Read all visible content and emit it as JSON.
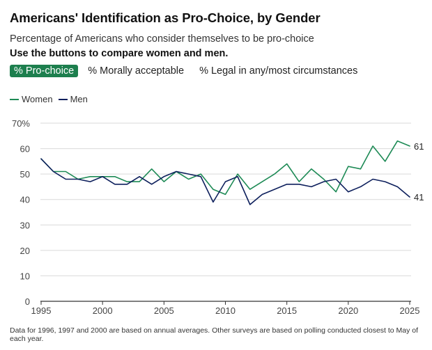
{
  "header": {
    "title": "Americans' Identification as Pro-Choice, by Gender",
    "subtitle": "Percentage of Americans who consider themselves to be pro-choice",
    "instruction": "Use the buttons to compare women and men."
  },
  "buttons": [
    {
      "label": "% Pro-choice",
      "active": true
    },
    {
      "label": "% Morally acceptable",
      "active": false
    },
    {
      "label": "% Legal in any/most circumstances",
      "active": false
    }
  ],
  "footnote": "Data for 1996, 1997 and 2000 are based on annual averages. Other surveys are based on polling conducted closest to May of each year.",
  "colors": {
    "women": "#1d8a55",
    "men": "#0d1f5c",
    "grid": "#d9d9d9",
    "active_button": "#1d7f4e"
  },
  "chart_data": {
    "type": "line",
    "title": "Americans' Identification as Pro-Choice, by Gender",
    "xlabel": "",
    "ylabel": "",
    "xlim": [
      1995,
      2025
    ],
    "ylim": [
      0,
      70
    ],
    "x_ticks": [
      1995,
      2000,
      2005,
      2010,
      2015,
      2020,
      2025
    ],
    "y_ticks": [
      0,
      10,
      20,
      30,
      40,
      50,
      60,
      70
    ],
    "y_tick_labels": [
      "0",
      "10",
      "20",
      "30",
      "40",
      "50",
      "60",
      "70%"
    ],
    "legend": "top-left",
    "grid": true,
    "series": [
      {
        "name": "Women",
        "x": [
          1995,
          1996,
          1997,
          1998,
          1999,
          2000,
          2001,
          2002,
          2003,
          2004,
          2005,
          2006,
          2007,
          2008,
          2009,
          2010,
          2011,
          2012,
          2013,
          2014,
          2015,
          2016,
          2017,
          2018,
          2019,
          2020,
          2021,
          2022,
          2023,
          2024,
          2025
        ],
        "values": [
          56,
          51,
          51,
          48,
          49,
          49,
          49,
          47,
          47,
          52,
          47,
          51,
          48,
          50,
          44,
          42,
          50,
          44,
          47,
          50,
          54,
          47,
          52,
          48,
          43,
          53,
          52,
          61,
          55,
          63,
          61
        ],
        "end_label": "61"
      },
      {
        "name": "Men",
        "x": [
          1995,
          1996,
          1997,
          1998,
          1999,
          2000,
          2001,
          2002,
          2003,
          2004,
          2005,
          2006,
          2007,
          2008,
          2009,
          2010,
          2011,
          2012,
          2013,
          2014,
          2015,
          2016,
          2017,
          2018,
          2019,
          2020,
          2021,
          2022,
          2023,
          2024,
          2025
        ],
        "values": [
          56,
          51,
          48,
          48,
          47,
          49,
          46,
          46,
          49,
          46,
          49,
          51,
          50,
          49,
          39,
          47,
          49,
          38,
          42,
          44,
          46,
          46,
          45,
          47,
          48,
          43,
          45,
          48,
          47,
          45,
          41
        ],
        "end_label": "41"
      }
    ]
  }
}
